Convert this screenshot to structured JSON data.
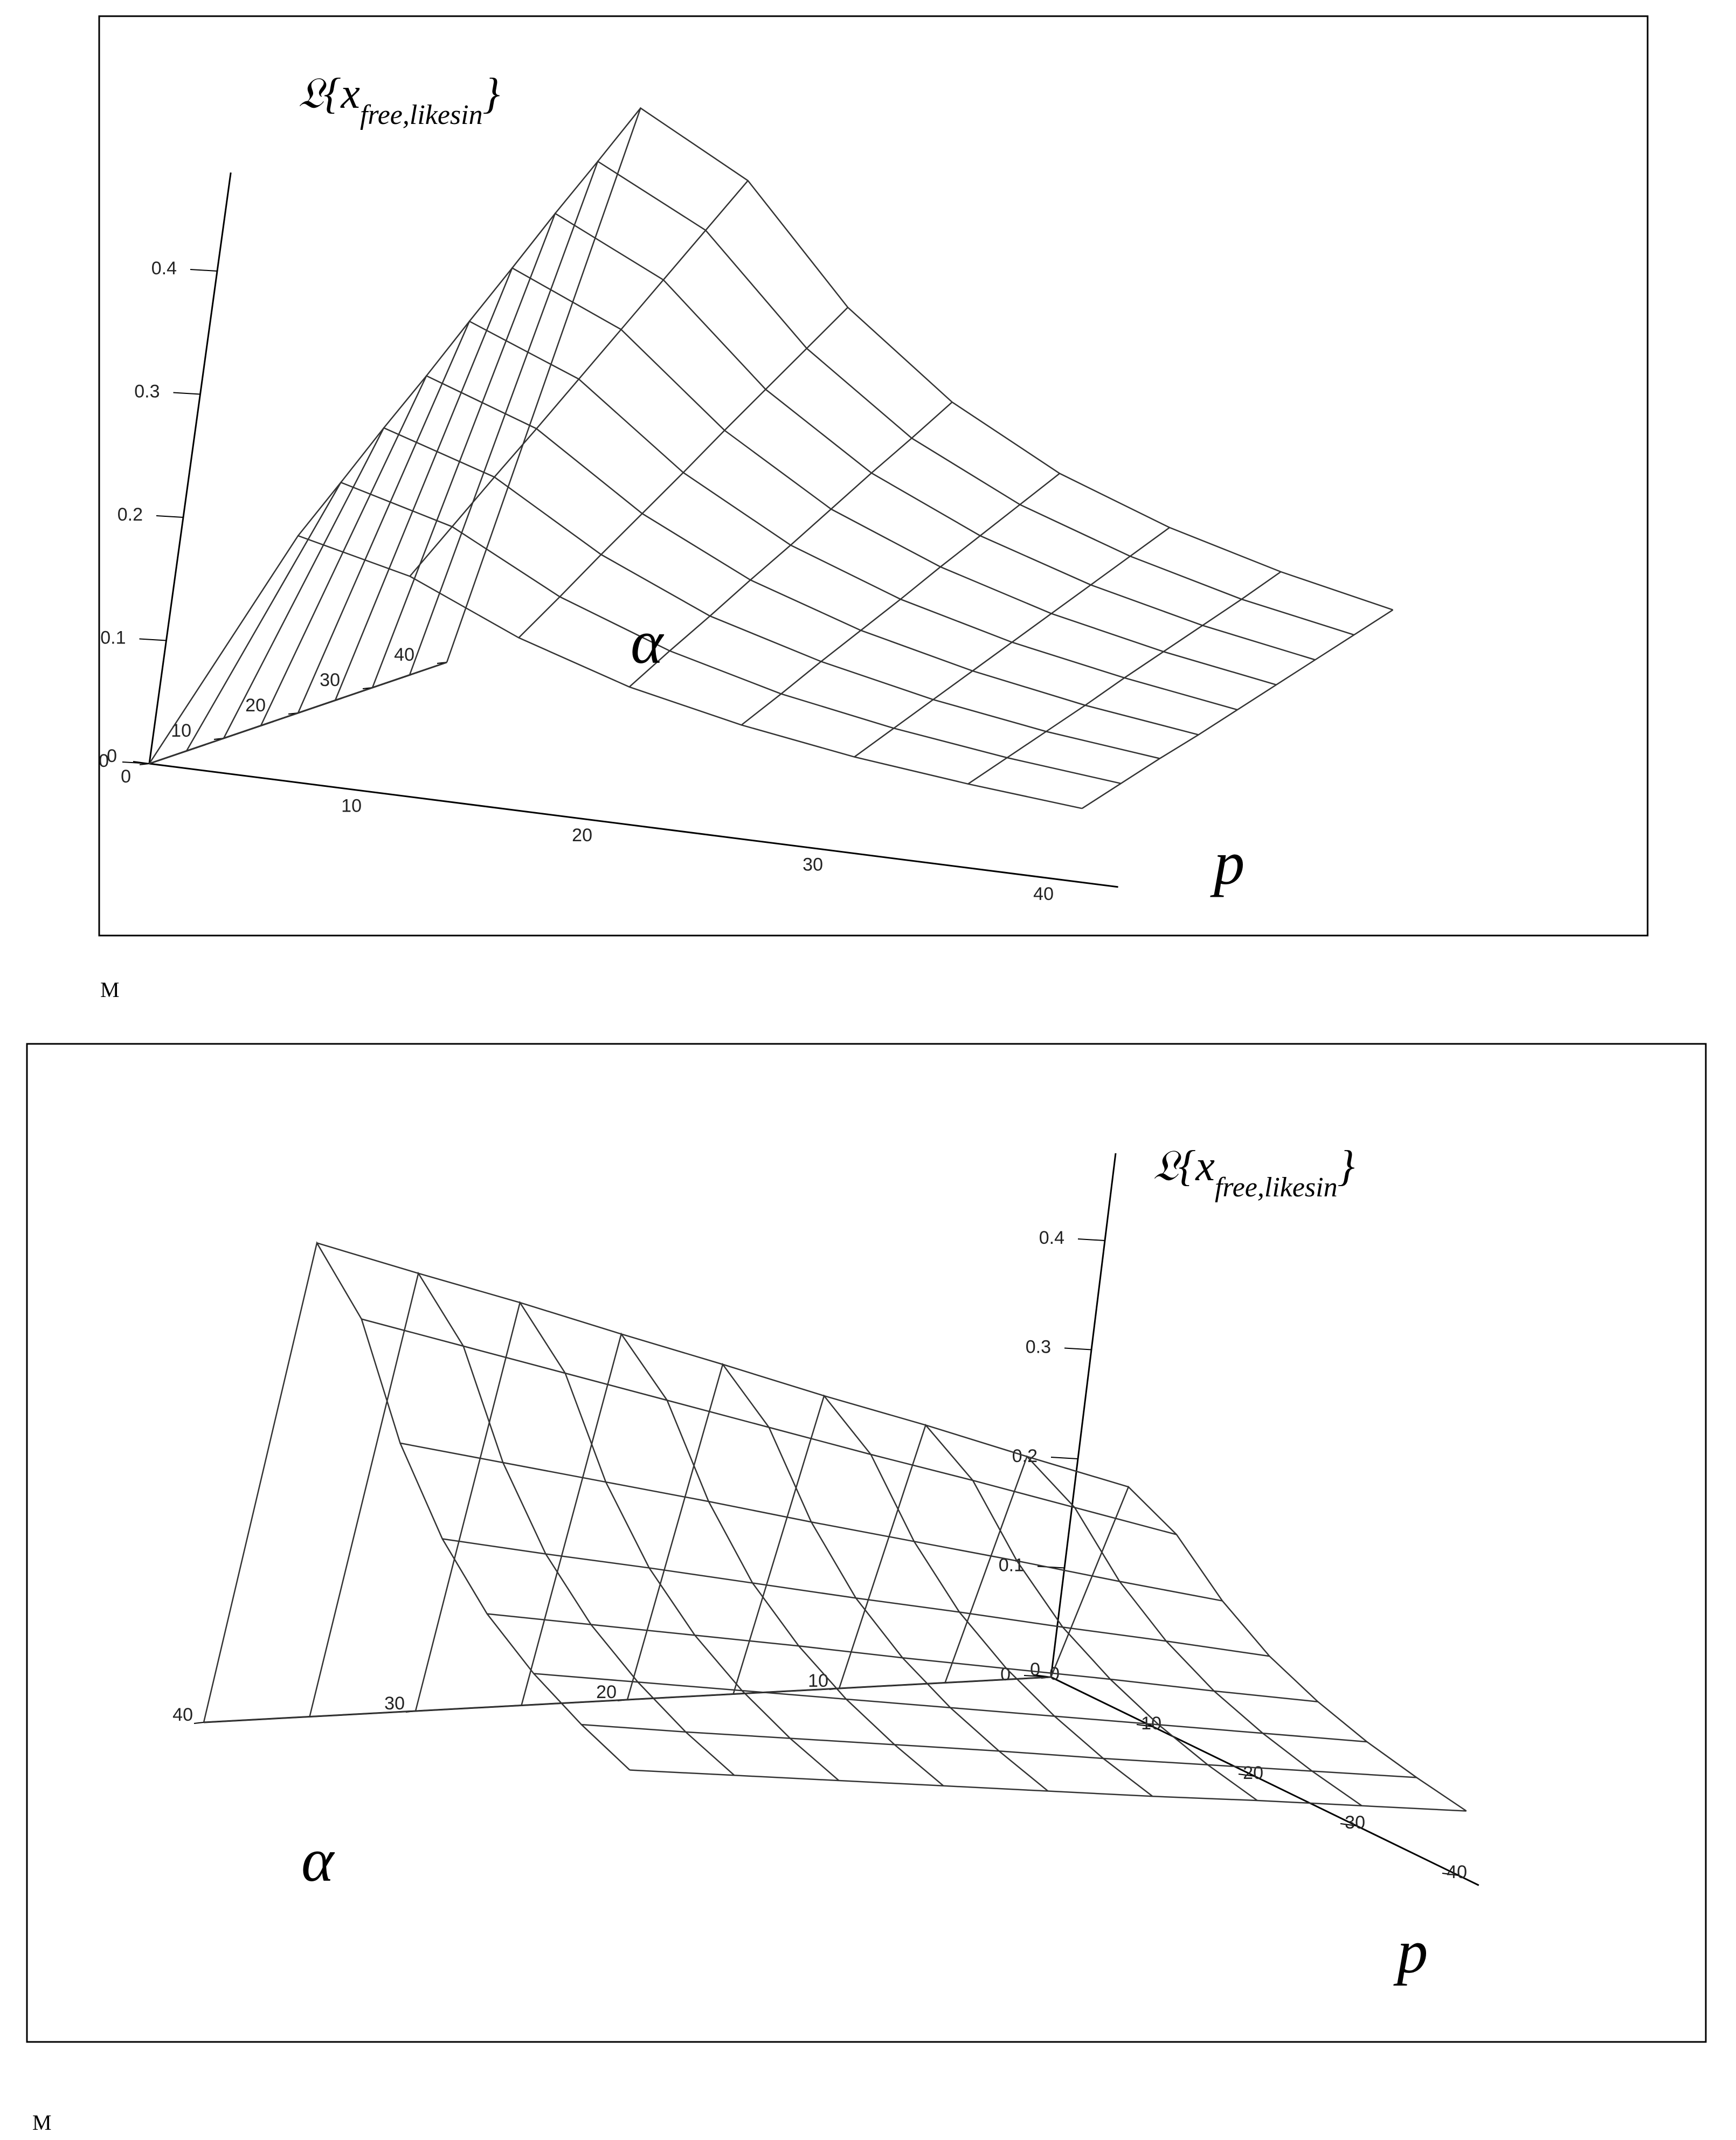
{
  "chart_data": [
    {
      "type": "surface",
      "color": "#333333",
      "x_label": "p",
      "y_label": "α",
      "z_label": {
        "base": "𝔏{x",
        "subscript": "free,likesin",
        "close": "}"
      },
      "x": [
        0,
        5,
        10,
        15,
        20,
        25,
        30,
        35,
        40
      ],
      "y": [
        0,
        5,
        10,
        15,
        20,
        25,
        30,
        35,
        40
      ],
      "z": [
        [
          0,
          0.197,
          0.176,
          0.138,
          0.11,
          0.091,
          0.077,
          0.067,
          0.059
        ],
        [
          0,
          0.23,
          0.206,
          0.161,
          0.129,
          0.106,
          0.09,
          0.078,
          0.069
        ],
        [
          0,
          0.264,
          0.236,
          0.185,
          0.147,
          0.122,
          0.103,
          0.089,
          0.079
        ],
        [
          0,
          0.296,
          0.265,
          0.208,
          0.166,
          0.137,
          0.116,
          0.1,
          0.088
        ],
        [
          0,
          0.33,
          0.295,
          0.231,
          0.184,
          0.152,
          0.129,
          0.112,
          0.098
        ],
        [
          0,
          0.363,
          0.325,
          0.255,
          0.203,
          0.168,
          0.142,
          0.123,
          0.108
        ],
        [
          0,
          0.397,
          0.355,
          0.278,
          0.222,
          0.183,
          0.155,
          0.134,
          0.118
        ],
        [
          0,
          0.429,
          0.385,
          0.301,
          0.24,
          0.198,
          0.168,
          0.145,
          0.128
        ],
        [
          0,
          0.462,
          0.415,
          0.324,
          0.259,
          0.213,
          0.181,
          0.157,
          0.138
        ]
      ],
      "xlim": [
        0,
        42
      ],
      "ylim": [
        0,
        40
      ],
      "zlim": [
        0,
        0.48
      ],
      "xticks": [
        0,
        10,
        20,
        30,
        40
      ],
      "yticks": [
        0,
        10,
        20,
        30,
        40
      ],
      "zticks": [
        0,
        0.1,
        0.2,
        0.3,
        0.4
      ]
    },
    {
      "type": "surface",
      "color": "#333333",
      "x_label": "p",
      "y_label": "α",
      "z_label": {
        "base": "𝔏{x",
        "subscript": "free,likesin",
        "close": "}"
      },
      "x": [
        0,
        5,
        10,
        15,
        20,
        25,
        30,
        35,
        40
      ],
      "y": [
        0,
        5,
        10,
        15,
        20,
        25,
        30,
        35,
        40
      ],
      "z": [
        [
          0,
          0.197,
          0.176,
          0.138,
          0.11,
          0.091,
          0.077,
          0.067,
          0.059
        ],
        [
          0,
          0.23,
          0.206,
          0.161,
          0.129,
          0.106,
          0.09,
          0.078,
          0.069
        ],
        [
          0,
          0.264,
          0.236,
          0.185,
          0.147,
          0.122,
          0.103,
          0.089,
          0.079
        ],
        [
          0,
          0.296,
          0.265,
          0.208,
          0.166,
          0.137,
          0.116,
          0.1,
          0.088
        ],
        [
          0,
          0.33,
          0.295,
          0.231,
          0.184,
          0.152,
          0.129,
          0.112,
          0.098
        ],
        [
          0,
          0.363,
          0.325,
          0.255,
          0.203,
          0.168,
          0.142,
          0.123,
          0.108
        ],
        [
          0,
          0.397,
          0.355,
          0.278,
          0.222,
          0.183,
          0.155,
          0.134,
          0.118
        ],
        [
          0,
          0.429,
          0.385,
          0.301,
          0.24,
          0.198,
          0.168,
          0.145,
          0.128
        ],
        [
          0,
          0.462,
          0.415,
          0.324,
          0.259,
          0.213,
          0.181,
          0.157,
          0.138
        ]
      ],
      "xlim": [
        0,
        42
      ],
      "ylim": [
        0,
        40
      ],
      "zlim": [
        0,
        0.48
      ],
      "xticks": [
        0,
        10,
        20,
        30,
        40
      ],
      "yticks": [
        0,
        10,
        20,
        30,
        40
      ],
      "zticks": [
        0,
        0.1,
        0.2,
        0.3,
        0.4
      ]
    }
  ],
  "captions": [
    "M",
    "M"
  ]
}
